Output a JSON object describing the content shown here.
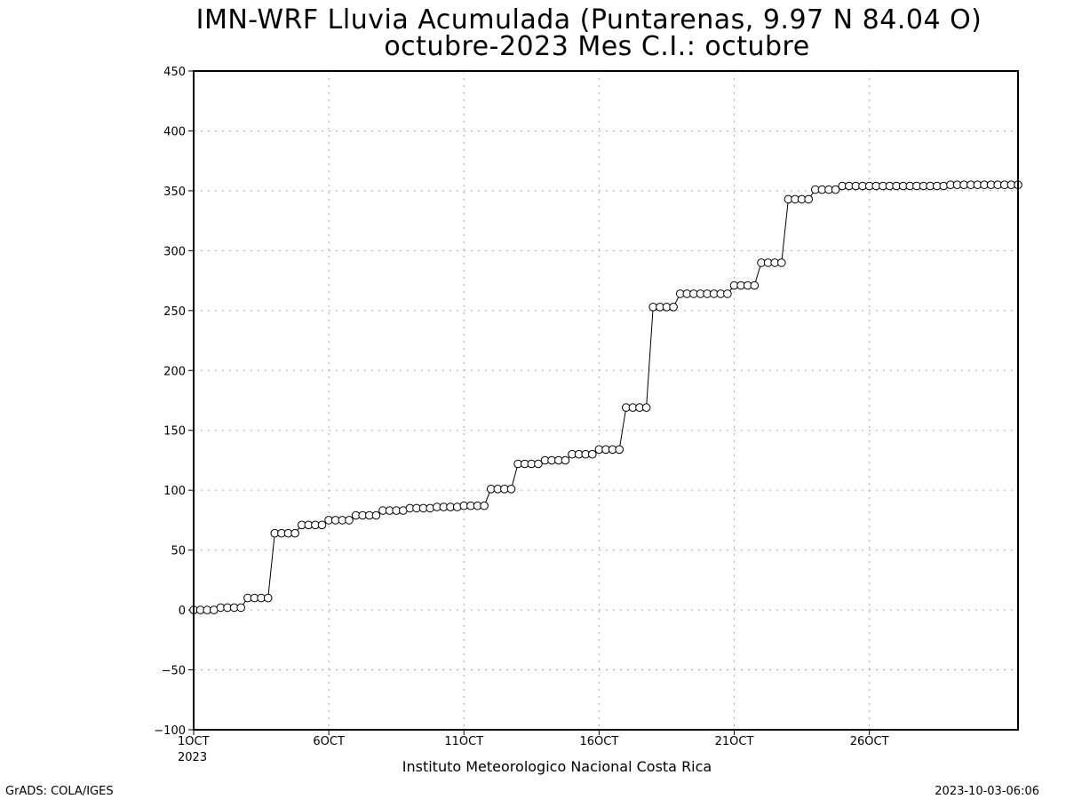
{
  "chart_data": {
    "type": "line",
    "title": "IMN-WRF  Lluvia Acumulada (Puntarenas, 9.97  N 84.04  O)",
    "subtitle": "octubre-2023 Mes C.I.: octubre",
    "xlabel": "Instituto Meteorologico Nacional Costa Rica",
    "ylabel": "",
    "ylim": [
      -100,
      450
    ],
    "yticks": [
      -100,
      -50,
      0,
      50,
      100,
      150,
      200,
      250,
      300,
      350,
      400,
      450
    ],
    "xlim": [
      1,
      31.5
    ],
    "xticks": [
      {
        "day": 1,
        "label": "1OCT",
        "sublabel": "2023"
      },
      {
        "day": 6,
        "label": "6OCT"
      },
      {
        "day": 11,
        "label": "11OCT"
      },
      {
        "day": 16,
        "label": "16OCT"
      },
      {
        "day": 21,
        "label": "21OCT"
      },
      {
        "day": 26,
        "label": "26OCT"
      }
    ],
    "grid": true,
    "marker": "open-circle",
    "x_unit": "day of October 2023 (6-hourly steps)",
    "y": [
      0,
      0,
      0,
      0,
      2,
      2,
      2,
      2,
      10,
      10,
      10,
      10,
      64,
      64,
      64,
      64,
      71,
      71,
      71,
      71,
      75,
      75,
      75,
      75,
      79,
      79,
      79,
      79,
      83,
      83,
      83,
      83,
      85,
      85,
      85,
      85,
      86,
      86,
      86,
      86,
      87,
      87,
      87,
      87,
      101,
      101,
      101,
      101,
      122,
      122,
      122,
      122,
      125,
      125,
      125,
      125,
      130,
      130,
      130,
      130,
      134,
      134,
      134,
      134,
      169,
      169,
      169,
      169,
      253,
      253,
      253,
      253,
      264,
      264,
      264,
      264,
      264,
      264,
      264,
      264,
      271,
      271,
      271,
      271,
      290,
      290,
      290,
      290,
      343,
      343,
      343,
      343,
      351,
      351,
      351,
      351,
      354,
      354,
      354,
      354,
      354,
      354,
      354,
      354,
      354,
      354,
      354,
      354,
      354,
      354,
      354,
      354,
      355,
      355,
      355,
      355,
      355,
      355,
      355,
      355,
      355,
      355,
      355
    ]
  },
  "footer": {
    "left": "GrADS: COLA/IGES",
    "right": "2023-10-03-06:06"
  }
}
